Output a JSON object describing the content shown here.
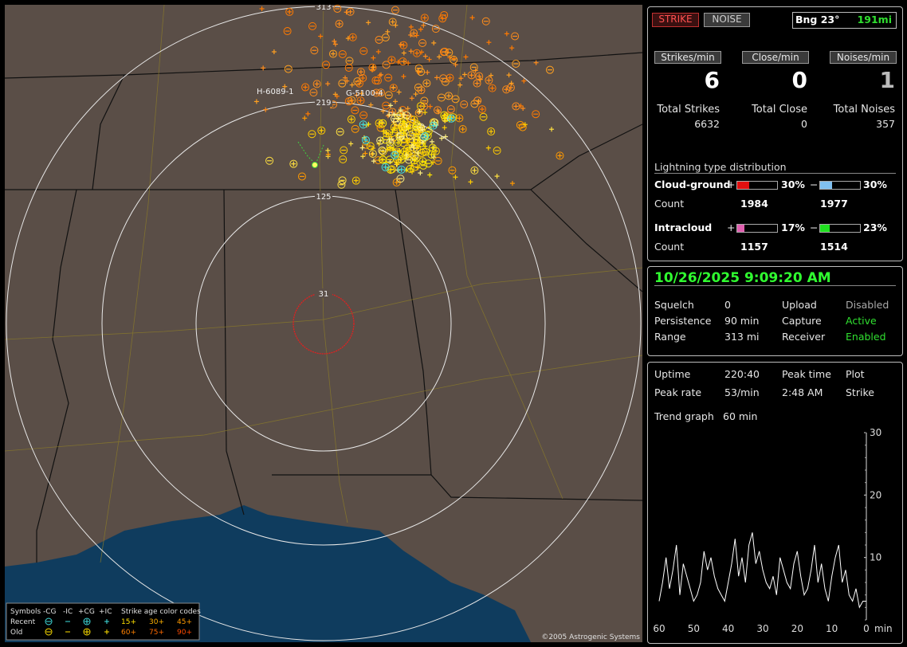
{
  "map": {
    "rings": [
      "31",
      "125",
      "219",
      "313"
    ],
    "station_labels": [
      "H-6089-1",
      "G-5100-4"
    ],
    "copyright": "©2005 Astrogenic Systems",
    "legend": {
      "title": "Symbols",
      "cols": [
        "-CG",
        "-IC",
        "+CG",
        "+IC"
      ],
      "age_title": "Strike age color codes",
      "rows": [
        {
          "label": "Recent",
          "ages": [
            "15+",
            "30+",
            "45+"
          ]
        },
        {
          "label": "Old",
          "ages": [
            "60+",
            "75+",
            "90+"
          ]
        }
      ]
    }
  },
  "header": {
    "strike": "STRIKE",
    "noise": "NOISE",
    "bearing": "Bng 23°",
    "distance": "191mi"
  },
  "rates": [
    {
      "label": "Strikes/min",
      "value": 6,
      "total_label": "Total Strikes",
      "total": 6632
    },
    {
      "label": "Close/min",
      "value": 0,
      "total_label": "Total Close",
      "total": 0
    },
    {
      "label": "Noises/min",
      "value": 1,
      "total_label": "Total Noises",
      "total": 357
    }
  ],
  "distribution": {
    "title": "Lightning type distribution",
    "pos_sign": "+",
    "neg_sign": "−",
    "rows": [
      {
        "label": "Cloud-ground",
        "pos": {
          "value": 30,
          "label": "30%"
        },
        "neg": {
          "value": 30,
          "label": "30%"
        },
        "count_label": "Count",
        "pos_count": 1984,
        "neg_count": 1977
      },
      {
        "label": "Intracloud",
        "pos": {
          "value": 17,
          "label": "17%"
        },
        "neg": {
          "value": 23,
          "label": "23%"
        },
        "count_label": "Count",
        "pos_count": 1157,
        "neg_count": 1514
      }
    ]
  },
  "status": {
    "datetime": "10/26/2025 9:09:20 AM",
    "left": [
      [
        "Squelch",
        "0"
      ],
      [
        "Persistence",
        "90 min"
      ],
      [
        "Range",
        "313 mi"
      ]
    ],
    "right": [
      [
        "Upload",
        "Disabled"
      ],
      [
        "Capture",
        "Active"
      ],
      [
        "Receiver",
        "Enabled"
      ]
    ]
  },
  "stats": {
    "uptime_label": "Uptime",
    "uptime": "220:40",
    "peak_time_label": "Peak time",
    "peak_time": "2:48 AM",
    "plot_label": "Plot",
    "plot": "Strike",
    "peak_rate_label": "Peak rate",
    "peak_rate": "53/min",
    "trend_label": "Trend graph",
    "trend_span": "60 min"
  },
  "trend": {
    "ylim": [
      0,
      30
    ],
    "yticks": [
      10,
      20,
      30
    ],
    "xlim": [
      60,
      0
    ],
    "xticks": [
      60,
      50,
      40,
      30,
      20,
      10,
      0
    ],
    "x_unit": "min",
    "values": [
      3,
      6,
      10,
      5,
      8,
      12,
      4,
      9,
      7,
      5,
      3,
      4,
      6,
      11,
      8,
      10,
      7,
      5,
      4,
      3,
      6,
      9,
      13,
      7,
      10,
      6,
      12,
      14,
      9,
      11,
      8,
      6,
      5,
      7,
      4,
      10,
      8,
      6,
      5,
      9,
      11,
      7,
      4,
      5,
      8,
      12,
      6,
      9,
      5,
      3,
      7,
      10,
      12,
      6,
      8,
      4,
      3,
      5,
      2,
      3,
      3
    ]
  }
}
